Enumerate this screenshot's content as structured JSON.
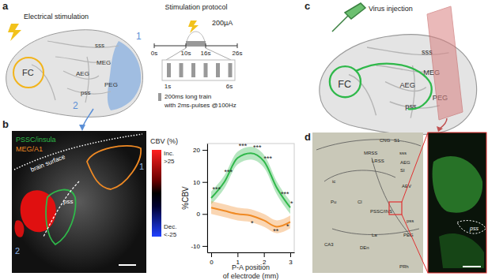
{
  "panel_a": {
    "label": "a",
    "title": "Electrical stimulation",
    "regions": [
      "FC",
      "sss",
      "MEG",
      "AEG",
      "PEG",
      "pss"
    ],
    "pathways": [
      "1",
      "2"
    ],
    "protocol": {
      "title": "Stimulation protocol",
      "current": "200µA",
      "times": [
        "0s",
        "10s",
        "16s",
        "26s"
      ],
      "train_times": [
        "1s",
        "6s"
      ],
      "train_note": [
        "200ms long train",
        "with 2ms-pulses @100Hz"
      ]
    }
  },
  "panel_b": {
    "label": "b",
    "image_labels": [
      "brain surface",
      "pss",
      "1",
      "2"
    ],
    "legend": [
      {
        "name": "PSSC/insula",
        "color": "#2fb84a"
      },
      {
        "name": "MEG/A1",
        "color": "#f08a24"
      }
    ],
    "colorbar": {
      "title": "CBV (%)",
      "top": "Inc.",
      "top_value": ">25",
      "bottom": "Dec.",
      "bottom_value": "<-25"
    }
  },
  "panel_c": {
    "label": "c",
    "title": "Virus injection",
    "regions": [
      "FC",
      "sss",
      "MEG",
      "AEG",
      "PEG",
      "pss"
    ]
  },
  "panel_d": {
    "label": "d",
    "atlas_labels": [
      "CNG",
      "S1",
      "MRSS",
      "LRSS",
      "sss",
      "AEG",
      "SI",
      "AEV",
      "Cl",
      "PSSC/INS",
      "pss",
      "PEG",
      "Pu",
      "ic",
      "La",
      "DEn",
      "PRh",
      "CA3"
    ],
    "zoom_label": "pss"
  },
  "chart_data": {
    "type": "line",
    "y_label": "%CBV",
    "x_label": [
      "P-A position",
      "of electrode (mm)"
    ],
    "x": [
      0,
      0.5,
      1,
      1.5,
      2,
      2.5,
      3
    ],
    "series": [
      {
        "name": "PSSC/insula",
        "color": "#2fb84a",
        "values": [
          5,
          10,
          17.5,
          19,
          16.5,
          8,
          2
        ],
        "error": [
          2,
          2,
          2,
          2,
          2,
          2,
          2
        ]
      },
      {
        "name": "MEG/A1",
        "color": "#f08a24",
        "values": [
          2,
          1,
          0,
          -0.5,
          -2,
          -4,
          -2.5
        ],
        "error": [
          2,
          2,
          2,
          2,
          2,
          2,
          2
        ]
      }
    ],
    "xlim": [
      -0.15,
      3.15
    ],
    "xticks": [
      0,
      1,
      2,
      3
    ],
    "ylim": [
      -12,
      22
    ],
    "yticks": [
      -10,
      0,
      10,
      20
    ],
    "grid": false,
    "legend": false,
    "annotations": [
      {
        "text": "***",
        "x": 0.2,
        "y": 7
      },
      {
        "text": "***",
        "x": 0.65,
        "y": 12.5
      },
      {
        "text": "***",
        "x": 1.2,
        "y": 20.5
      },
      {
        "text": "***",
        "x": 1.75,
        "y": 20
      },
      {
        "text": "***",
        "x": 2.15,
        "y": 16.5
      },
      {
        "text": "***",
        "x": 2.8,
        "y": 5.5
      },
      {
        "text": "*",
        "x": 3.05,
        "y": 2.5
      },
      {
        "text": "*",
        "x": 1.55,
        "y": -3.5
      },
      {
        "text": "**",
        "x": 2.45,
        "y": -6
      },
      {
        "text": "*",
        "x": 2.9,
        "y": -4.5
      }
    ]
  }
}
